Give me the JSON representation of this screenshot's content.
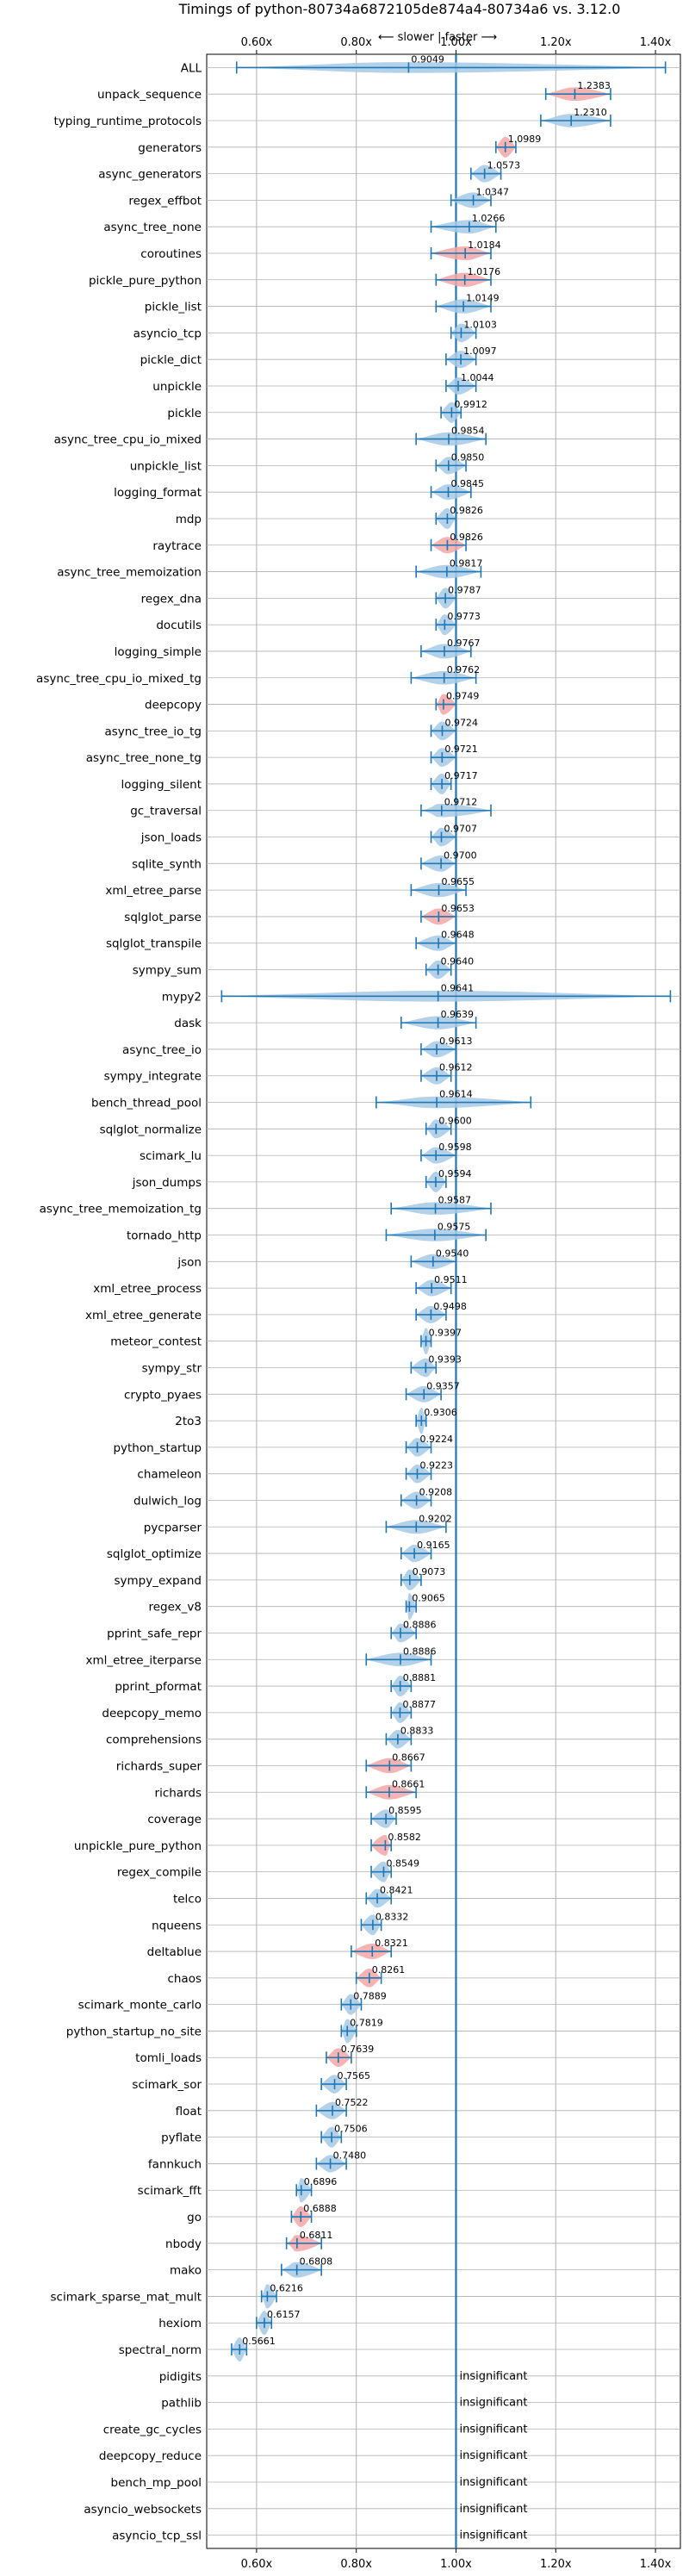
{
  "chart_data": {
    "type": "violin",
    "title": "Timings of python-80734a6872105de874a4-80734a6 vs. 3.12.0",
    "annotation": "⟵ slower | faster ⟶",
    "xlabel": "",
    "ylabel": "",
    "xlim": [
      0.5,
      1.45
    ],
    "x_ticks": [
      0.6,
      0.8,
      1.0,
      1.2,
      1.4
    ],
    "x_tick_labels": [
      "0.60x",
      "0.80x",
      "1.00x",
      "1.20x",
      "1.40x"
    ],
    "reference_line": 1.0,
    "grid": true,
    "colors": {
      "normal": "#1f77b4",
      "violin": "#a7c9e6",
      "highlight": "#f4a6a6",
      "grid": "#b0b0b0"
    },
    "categories": [
      "ALL",
      "unpack_sequence",
      "typing_runtime_protocols",
      "generators",
      "async_generators",
      "regex_effbot",
      "async_tree_none",
      "coroutines",
      "pickle_pure_python",
      "pickle_list",
      "asyncio_tcp",
      "pickle_dict",
      "unpickle",
      "pickle",
      "async_tree_cpu_io_mixed",
      "unpickle_list",
      "logging_format",
      "mdp",
      "raytrace",
      "async_tree_memoization",
      "regex_dna",
      "docutils",
      "logging_simple",
      "async_tree_cpu_io_mixed_tg",
      "deepcopy",
      "async_tree_io_tg",
      "async_tree_none_tg",
      "logging_silent",
      "gc_traversal",
      "json_loads",
      "sqlite_synth",
      "xml_etree_parse",
      "sqlglot_parse",
      "sqlglot_transpile",
      "sympy_sum",
      "mypy2",
      "dask",
      "async_tree_io",
      "sympy_integrate",
      "bench_thread_pool",
      "sqlglot_normalize",
      "scimark_lu",
      "json_dumps",
      "async_tree_memoization_tg",
      "tornado_http",
      "json",
      "xml_etree_process",
      "xml_etree_generate",
      "meteor_contest",
      "sympy_str",
      "crypto_pyaes",
      "2to3",
      "python_startup",
      "chameleon",
      "dulwich_log",
      "pycparser",
      "sqlglot_optimize",
      "sympy_expand",
      "regex_v8",
      "pprint_safe_repr",
      "xml_etree_iterparse",
      "pprint_pformat",
      "deepcopy_memo",
      "comprehensions",
      "richards_super",
      "richards",
      "coverage",
      "unpickle_pure_python",
      "regex_compile",
      "telco",
      "nqueens",
      "deltablue",
      "chaos",
      "scimark_monte_carlo",
      "python_startup_no_site",
      "tomli_loads",
      "scimark_sor",
      "float",
      "pyflate",
      "fannkuch",
      "scimark_fft",
      "go",
      "nbody",
      "mako",
      "scimark_sparse_mat_mult",
      "hexiom",
      "spectral_norm",
      "pidigits",
      "pathlib",
      "create_gc_cycles",
      "deepcopy_reduce",
      "bench_mp_pool",
      "asyncio_websockets",
      "asyncio_tcp_ssl"
    ],
    "values": [
      0.9049,
      1.2383,
      1.231,
      1.0989,
      1.0573,
      1.0347,
      1.0266,
      1.0184,
      1.0176,
      1.0149,
      1.0103,
      1.0097,
      1.0044,
      0.9912,
      0.9854,
      0.985,
      0.9845,
      0.9826,
      0.9826,
      0.9817,
      0.9787,
      0.9773,
      0.9767,
      0.9762,
      0.9749,
      0.9724,
      0.9721,
      0.9717,
      0.9712,
      0.9707,
      0.97,
      0.9655,
      0.9653,
      0.9648,
      0.964,
      0.9641,
      0.9639,
      0.9613,
      0.9612,
      0.9614,
      0.96,
      0.9598,
      0.9594,
      0.9587,
      0.9575,
      0.954,
      0.9511,
      0.9498,
      0.9397,
      0.9393,
      0.9357,
      0.9306,
      0.9224,
      0.9223,
      0.9208,
      0.9202,
      0.9165,
      0.9073,
      0.9065,
      0.8886,
      0.8886,
      0.8881,
      0.8877,
      0.8833,
      0.8667,
      0.8661,
      0.8595,
      0.8582,
      0.8549,
      0.8421,
      0.8332,
      0.8321,
      0.8261,
      0.7889,
      0.7819,
      0.7639,
      0.7565,
      0.7522,
      0.7506,
      0.748,
      0.6896,
      0.6888,
      0.6811,
      0.6808,
      0.6216,
      0.6157,
      0.5661,
      null,
      null,
      null,
      null,
      null,
      null,
      null
    ],
    "value_labels": [
      "0.9049",
      "1.2383",
      "1.2310",
      "1.0989",
      "1.0573",
      "1.0347",
      "1.0266",
      "1.0184",
      "1.0176",
      "1.0149",
      "1.0103",
      "1.0097",
      "1.0044",
      "0.9912",
      "0.9854",
      "0.9850",
      "0.9845",
      "0.9826",
      "0.9826",
      "0.9817",
      "0.9787",
      "0.9773",
      "0.9767",
      "0.9762",
      "0.9749",
      "0.9724",
      "0.9721",
      "0.9717",
      "0.9712",
      "0.9707",
      "0.9700",
      "0.9655",
      "0.9653",
      "0.9648",
      "0.9640",
      "0.9641",
      "0.9639",
      "0.9613",
      "0.9612",
      "0.9614",
      "0.9600",
      "0.9598",
      "0.9594",
      "0.9587",
      "0.9575",
      "0.9540",
      "0.9511",
      "0.9498",
      "0.9397",
      "0.9393",
      "0.9357",
      "0.9306",
      "0.9224",
      "0.9223",
      "0.9208",
      "0.9202",
      "0.9165",
      "0.9073",
      "0.9065",
      "0.8886",
      "0.8886",
      "0.8881",
      "0.8877",
      "0.8833",
      "0.8667",
      "0.8661",
      "0.8595",
      "0.8582",
      "0.8549",
      "0.8421",
      "0.8332",
      "0.8321",
      "0.8261",
      "0.7889",
      "0.7819",
      "0.7639",
      "0.7565",
      "0.7522",
      "0.7506",
      "0.7480",
      "0.6896",
      "0.6888",
      "0.6811",
      "0.6808",
      "0.6216",
      "0.6157",
      "0.5661",
      "insignificant",
      "insignificant",
      "insignificant",
      "insignificant",
      "insignificant",
      "insignificant",
      "insignificant"
    ],
    "ranges": [
      [
        0.56,
        1.42
      ],
      [
        1.18,
        1.31
      ],
      [
        1.17,
        1.31
      ],
      [
        1.08,
        1.12
      ],
      [
        1.03,
        1.09
      ],
      [
        0.99,
        1.07
      ],
      [
        0.95,
        1.08
      ],
      [
        0.95,
        1.07
      ],
      [
        0.96,
        1.07
      ],
      [
        0.96,
        1.07
      ],
      [
        0.99,
        1.04
      ],
      [
        0.98,
        1.04
      ],
      [
        0.98,
        1.04
      ],
      [
        0.97,
        1.01
      ],
      [
        0.92,
        1.06
      ],
      [
        0.96,
        1.02
      ],
      [
        0.95,
        1.03
      ],
      [
        0.96,
        1.0
      ],
      [
        0.95,
        1.02
      ],
      [
        0.92,
        1.05
      ],
      [
        0.96,
        1.0
      ],
      [
        0.96,
        1.0
      ],
      [
        0.93,
        1.03
      ],
      [
        0.91,
        1.04
      ],
      [
        0.96,
        1.0
      ],
      [
        0.95,
        1.0
      ],
      [
        0.95,
        1.0
      ],
      [
        0.95,
        0.99
      ],
      [
        0.93,
        1.07
      ],
      [
        0.95,
        1.0
      ],
      [
        0.93,
        1.0
      ],
      [
        0.91,
        1.02
      ],
      [
        0.93,
        1.0
      ],
      [
        0.92,
        1.0
      ],
      [
        0.94,
        0.99
      ],
      [
        0.53,
        1.43
      ],
      [
        0.89,
        1.04
      ],
      [
        0.93,
        1.0
      ],
      [
        0.93,
        0.99
      ],
      [
        0.84,
        1.15
      ],
      [
        0.94,
        0.99
      ],
      [
        0.93,
        1.0
      ],
      [
        0.94,
        0.98
      ],
      [
        0.87,
        1.07
      ],
      [
        0.86,
        1.06
      ],
      [
        0.91,
        1.0
      ],
      [
        0.92,
        0.99
      ],
      [
        0.92,
        0.98
      ],
      [
        0.93,
        0.95
      ],
      [
        0.91,
        0.96
      ],
      [
        0.9,
        0.97
      ],
      [
        0.92,
        0.94
      ],
      [
        0.9,
        0.95
      ],
      [
        0.9,
        0.95
      ],
      [
        0.89,
        0.95
      ],
      [
        0.86,
        0.98
      ],
      [
        0.89,
        0.95
      ],
      [
        0.89,
        0.93
      ],
      [
        0.9,
        0.92
      ],
      [
        0.87,
        0.92
      ],
      [
        0.82,
        0.95
      ],
      [
        0.87,
        0.91
      ],
      [
        0.87,
        0.91
      ],
      [
        0.86,
        0.91
      ],
      [
        0.82,
        0.91
      ],
      [
        0.82,
        0.92
      ],
      [
        0.83,
        0.88
      ],
      [
        0.83,
        0.87
      ],
      [
        0.83,
        0.87
      ],
      [
        0.82,
        0.87
      ],
      [
        0.81,
        0.85
      ],
      [
        0.79,
        0.87
      ],
      [
        0.8,
        0.85
      ],
      [
        0.77,
        0.81
      ],
      [
        0.77,
        0.8
      ],
      [
        0.74,
        0.79
      ],
      [
        0.73,
        0.78
      ],
      [
        0.72,
        0.78
      ],
      [
        0.73,
        0.77
      ],
      [
        0.72,
        0.78
      ],
      [
        0.68,
        0.71
      ],
      [
        0.67,
        0.71
      ],
      [
        0.66,
        0.73
      ],
      [
        0.65,
        0.73
      ],
      [
        0.61,
        0.64
      ],
      [
        0.6,
        0.63
      ],
      [
        0.55,
        0.58
      ],
      null,
      null,
      null,
      null,
      null,
      null,
      null
    ],
    "highlighted": [
      false,
      true,
      false,
      true,
      false,
      false,
      false,
      true,
      true,
      false,
      false,
      false,
      false,
      false,
      false,
      false,
      false,
      false,
      true,
      false,
      false,
      false,
      false,
      false,
      true,
      false,
      false,
      false,
      false,
      false,
      false,
      false,
      true,
      false,
      false,
      false,
      false,
      false,
      false,
      false,
      false,
      false,
      false,
      false,
      false,
      false,
      false,
      false,
      false,
      false,
      false,
      false,
      false,
      false,
      false,
      false,
      false,
      false,
      false,
      false,
      false,
      false,
      false,
      false,
      true,
      true,
      false,
      true,
      false,
      false,
      false,
      true,
      true,
      false,
      false,
      true,
      false,
      false,
      false,
      false,
      false,
      true,
      true,
      false,
      false,
      false,
      false,
      false,
      false,
      false,
      false,
      false,
      false,
      false
    ]
  }
}
